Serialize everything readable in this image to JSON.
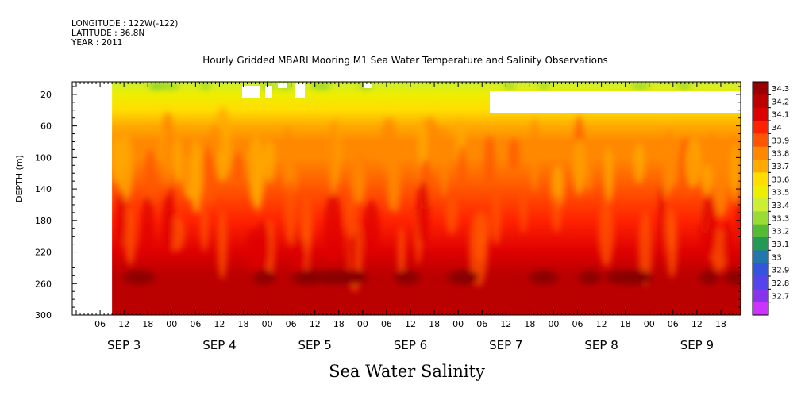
{
  "header": {
    "longitude": "LONGITUDE : 122W(-122)",
    "latitude": "LATITUDE : 36.8N",
    "year": "YEAR : 2011"
  },
  "title": "Hourly Gridded MBARI Mooring M1 Sea Water Temperature and Salinity Observations",
  "bottom_title": "Sea Water Salinity",
  "chart_data": {
    "type": "heatmap",
    "title": "Hourly Gridded MBARI Mooring M1 Sea Water Temperature and Salinity Observations",
    "xlabel": "",
    "ylabel": "DEPTH (m)",
    "y_axis": {
      "ticks": [
        20,
        60,
        100,
        140,
        180,
        220,
        260,
        300
      ],
      "range": [
        4,
        300
      ],
      "inverted": true
    },
    "x_axis": {
      "hour_ticks": [
        "06",
        "12",
        "18",
        "00",
        "06",
        "12",
        "18",
        "00",
        "06",
        "12",
        "18",
        "00",
        "06",
        "12",
        "18",
        "00",
        "06",
        "12",
        "18",
        "00",
        "06",
        "12",
        "18",
        "00",
        "06",
        "12",
        "18"
      ],
      "day_labels": [
        "SEP  3",
        "SEP  4",
        "SEP  5",
        "SEP  6",
        "SEP  7",
        "SEP  8",
        "SEP  9"
      ],
      "range": [
        "2011-09-02 23:00",
        "2011-09-09 23:00"
      ]
    },
    "colorbar": {
      "levels": [
        "34.3",
        "34.2",
        "34.1",
        "34",
        "33.9",
        "33.8",
        "33.7",
        "33.6",
        "33.5",
        "33.4",
        "33.3",
        "33.2",
        "33.1",
        "33",
        "32.9",
        "32.8",
        "32.7"
      ],
      "colors": [
        "#990000",
        "#bb0000",
        "#dd0000",
        "#ff2200",
        "#ff5500",
        "#ff8800",
        "#ffaa00",
        "#ffdd00",
        "#eeee00",
        "#ccee33",
        "#99dd33",
        "#55bb33",
        "#229955",
        "#2277aa",
        "#3355dd",
        "#5544ee",
        "#8833ee",
        "#cc33ff"
      ]
    },
    "profile": [
      {
        "depth": 4,
        "salinity": 33.45
      },
      {
        "depth": 20,
        "salinity": 33.5
      },
      {
        "depth": 40,
        "salinity": 33.6
      },
      {
        "depth": 60,
        "salinity": 33.75
      },
      {
        "depth": 80,
        "salinity": 33.85
      },
      {
        "depth": 100,
        "salinity": 33.88
      },
      {
        "depth": 140,
        "salinity": 33.95
      },
      {
        "depth": 180,
        "salinity": 34.05
      },
      {
        "depth": 220,
        "salinity": 34.1
      },
      {
        "depth": 250,
        "salinity": 34.2
      },
      {
        "depth": 300,
        "salinity": 34.2
      }
    ],
    "missing_data_start": "2011-09-02 23:00",
    "data_start": "2011-09-03 09:00"
  }
}
